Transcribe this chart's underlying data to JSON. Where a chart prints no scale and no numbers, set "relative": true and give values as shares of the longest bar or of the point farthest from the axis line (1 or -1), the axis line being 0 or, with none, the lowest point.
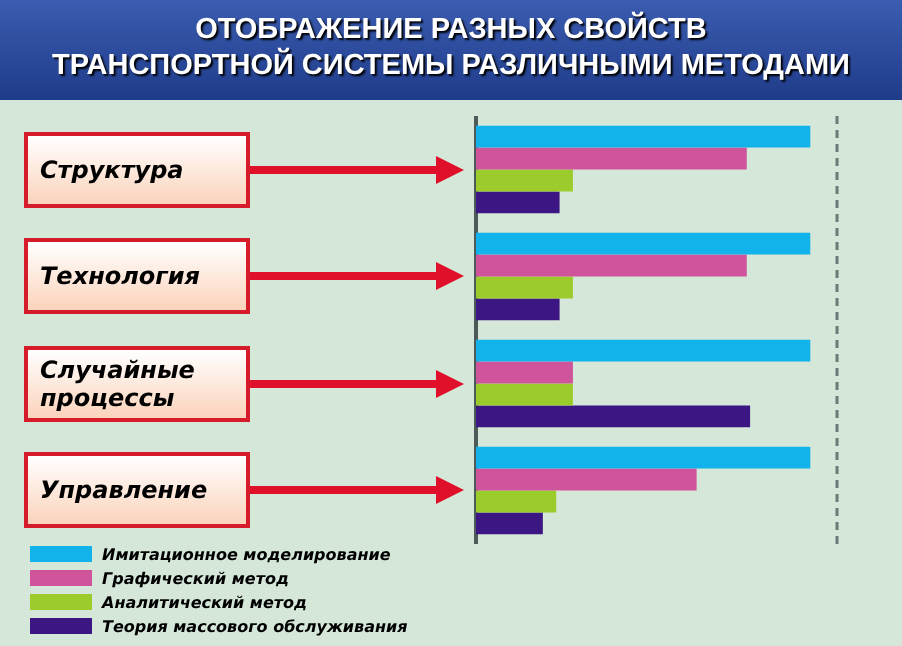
{
  "chart_data": {
    "type": "bar",
    "orientation": "horizontal",
    "relative": true,
    "title": "ОТОБРАЖЕНИЕ РАЗНЫХ СВОЙСТВ\nТРАНСПОРТНОЙ СИСТЕМЫ РАЗЛИЧНЫМИ МЕТОДАМИ",
    "categories": [
      "Структура",
      "Технология",
      "Случайные процессы",
      "Управление"
    ],
    "series": [
      {
        "name": "Имитационное моделирование",
        "color": "#12b3ea",
        "values": [
          1,
          1,
          1,
          1
        ]
      },
      {
        "name": "Графический метод",
        "color": "#d0549c",
        "values": [
          0.81,
          0.81,
          0.29,
          0.66
        ]
      },
      {
        "name": "Аналитический метод",
        "color": "#9ccc2c",
        "values": [
          0.29,
          0.29,
          0.29,
          0.24
        ]
      },
      {
        "name": "Теория массового обслуживания",
        "color": "#3c1682",
        "values": [
          0.25,
          0.25,
          0.82,
          0.2
        ]
      }
    ],
    "ref_lines": [
      {
        "axis": "x",
        "value": 1.08,
        "color": "#6a7a78",
        "line_style": "dashed"
      }
    ],
    "legend": "bottom left"
  }
}
